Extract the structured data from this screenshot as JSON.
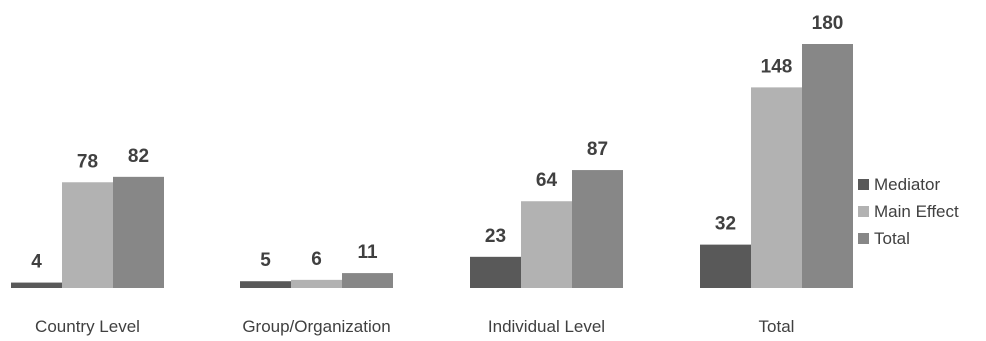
{
  "chart_data": {
    "type": "bar",
    "categories": [
      "Country Level",
      "Group/Organization",
      "Individual Level",
      "Total"
    ],
    "series": [
      {
        "name": "Mediator",
        "values": [
          4,
          5,
          23,
          32
        ],
        "color": "#595959"
      },
      {
        "name": "Main Effect",
        "values": [
          78,
          6,
          64,
          148
        ],
        "color": "#b2b2b2"
      },
      {
        "name": "Total",
        "values": [
          82,
          11,
          87,
          180
        ],
        "color": "#878787"
      }
    ],
    "title": "",
    "xlabel": "",
    "ylabel": "",
    "ylim": [
      0,
      180
    ],
    "grid": false,
    "legend_position": "right",
    "data_labels": true
  }
}
